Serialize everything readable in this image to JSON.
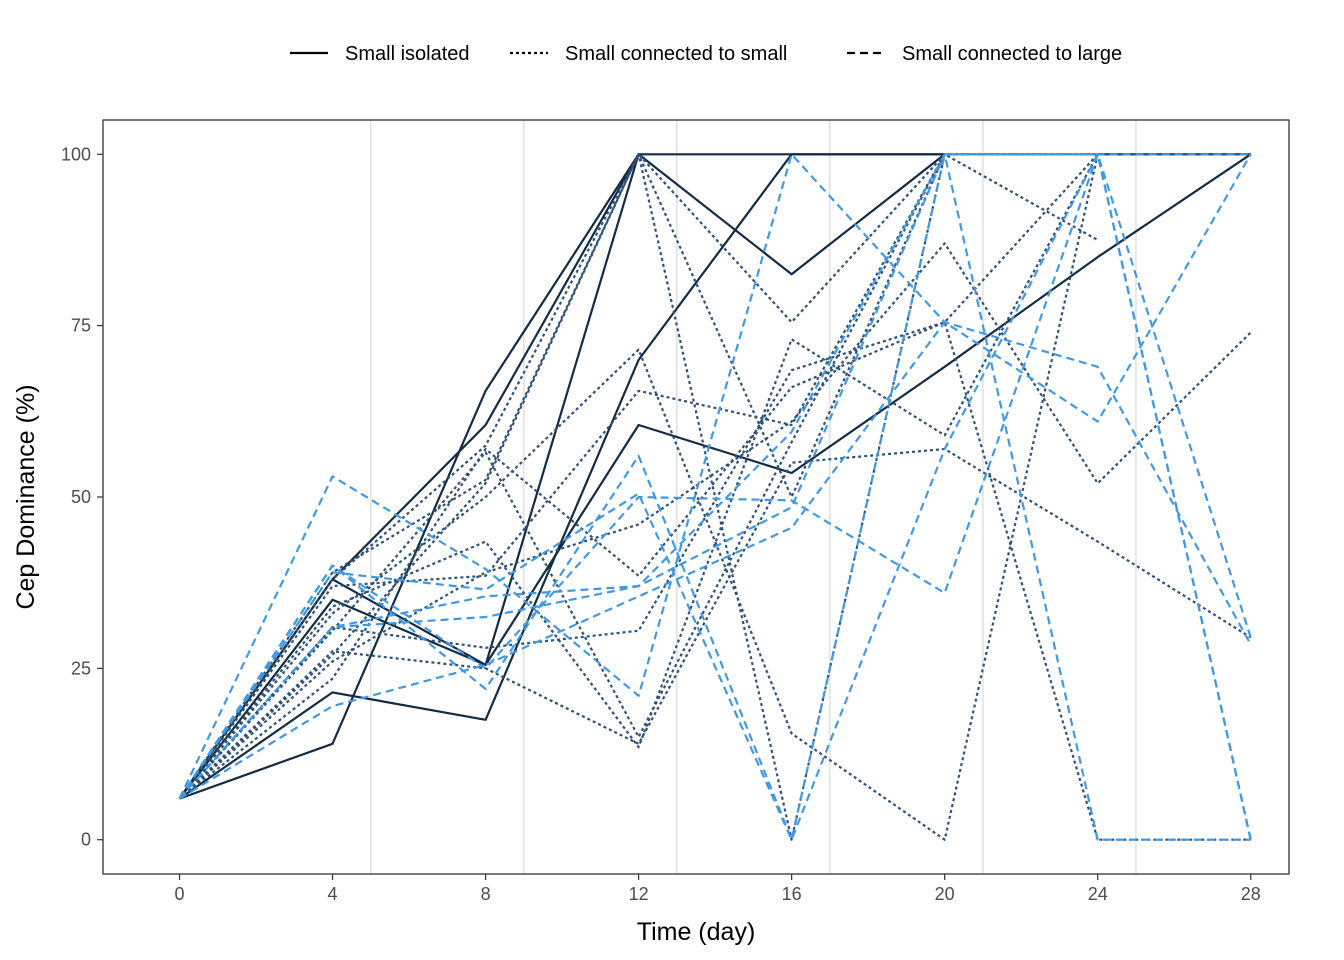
{
  "chart_data": {
    "type": "line",
    "xlabel": "Time (day)",
    "ylabel": "Cep Dominance (%)",
    "x": [
      0,
      4,
      8,
      12,
      16,
      20,
      24,
      28
    ],
    "xlim": [
      -2,
      29
    ],
    "ylim": [
      -5,
      105
    ],
    "x_ticks": [
      0,
      4,
      8,
      12,
      16,
      20,
      24,
      28
    ],
    "y_ticks": [
      0,
      25,
      50,
      75,
      100
    ],
    "vertical_reference_lines": [
      5,
      9,
      13,
      17,
      21,
      25
    ],
    "grid": false,
    "legend_position": "top",
    "colors": {
      "Small isolated": "#132b43",
      "Small connected to small": "#2e5177",
      "Small connected to large": "#4299e0",
      "reference_line": "#d9d9d9",
      "panel_border": "#333333"
    },
    "legend": [
      {
        "label": "Small isolated",
        "dash": "solid"
      },
      {
        "label": "Small connected to small",
        "dash": "dotted"
      },
      {
        "label": "Small connected to large",
        "dash": "dashed"
      }
    ],
    "series": [
      {
        "group": "Small isolated",
        "values": [
          6,
          38,
          60.5,
          100,
          100,
          100,
          null,
          null
        ]
      },
      {
        "group": "Small isolated",
        "values": [
          6,
          38,
          25.5,
          100,
          82.5,
          100,
          null,
          null
        ]
      },
      {
        "group": "Small isolated",
        "values": [
          6,
          21.5,
          17.5,
          70,
          100,
          100,
          null,
          null
        ]
      },
      {
        "group": "Small isolated",
        "values": [
          6,
          14,
          65.5,
          100,
          null,
          null,
          null,
          null
        ]
      },
      {
        "group": "Small isolated",
        "values": [
          6,
          35,
          25.5,
          60.5,
          53.5,
          69,
          85,
          100
        ]
      },
      {
        "group": "Small connected to small",
        "values": [
          6,
          39,
          52.5,
          100,
          0,
          100,
          100,
          100
        ]
      },
      {
        "group": "Small connected to small",
        "values": [
          6,
          38,
          57.5,
          100,
          50,
          100,
          100,
          100
        ]
      },
      {
        "group": "Small connected to small",
        "values": [
          6,
          27,
          52,
          100,
          75.5,
          100,
          87.5,
          null
        ]
      },
      {
        "group": "Small connected to small",
        "values": [
          6,
          34,
          43.5,
          13.5,
          73,
          59,
          100,
          100
        ]
      },
      {
        "group": "Small connected to small",
        "values": [
          6,
          33,
          50,
          71.5,
          15.5,
          0,
          100,
          100
        ]
      },
      {
        "group": "Small connected to small",
        "values": [
          6,
          26,
          39,
          46,
          61,
          87,
          52,
          74
        ]
      },
      {
        "group": "Small connected to small",
        "values": [
          6,
          23.5,
          57,
          38.5,
          66,
          75.5,
          100,
          100
        ]
      },
      {
        "group": "Small connected to small",
        "values": [
          6,
          27.5,
          25,
          14,
          55,
          57,
          43.5,
          29.5
        ]
      },
      {
        "group": "Small connected to small",
        "values": [
          6,
          37,
          38.5,
          65.5,
          60.5,
          100,
          100,
          100
        ]
      },
      {
        "group": "Small connected to small",
        "values": [
          6,
          31,
          28,
          30.5,
          68.5,
          75.5,
          0,
          0
        ]
      },
      {
        "group": "Small connected to small",
        "values": [
          6,
          30.5,
          56.5,
          15,
          58,
          100,
          100,
          100
        ]
      },
      {
        "group": "Small connected to large",
        "values": [
          6,
          53,
          39.5,
          21,
          100,
          75.5,
          69,
          28.5
        ]
      },
      {
        "group": "Small connected to large",
        "values": [
          6,
          40,
          22,
          56,
          0,
          57,
          100,
          0
        ]
      },
      {
        "group": "Small connected to large",
        "values": [
          6,
          31,
          35.5,
          37,
          48.5,
          100,
          100,
          100
        ]
      },
      {
        "group": "Small connected to large",
        "values": [
          6,
          40,
          25,
          50,
          49.5,
          36,
          100,
          0
        ]
      },
      {
        "group": "Small connected to large",
        "values": [
          6,
          19.5,
          25.5,
          35.5,
          45.5,
          75.5,
          61,
          100
        ]
      },
      {
        "group": "Small connected to large",
        "values": [
          6,
          31,
          32.5,
          37,
          59.5,
          100,
          0,
          0
        ]
      },
      {
        "group": "Small connected to large",
        "values": [
          6,
          39,
          36.5,
          50.5,
          0,
          100,
          100,
          29.5
        ]
      }
    ]
  }
}
